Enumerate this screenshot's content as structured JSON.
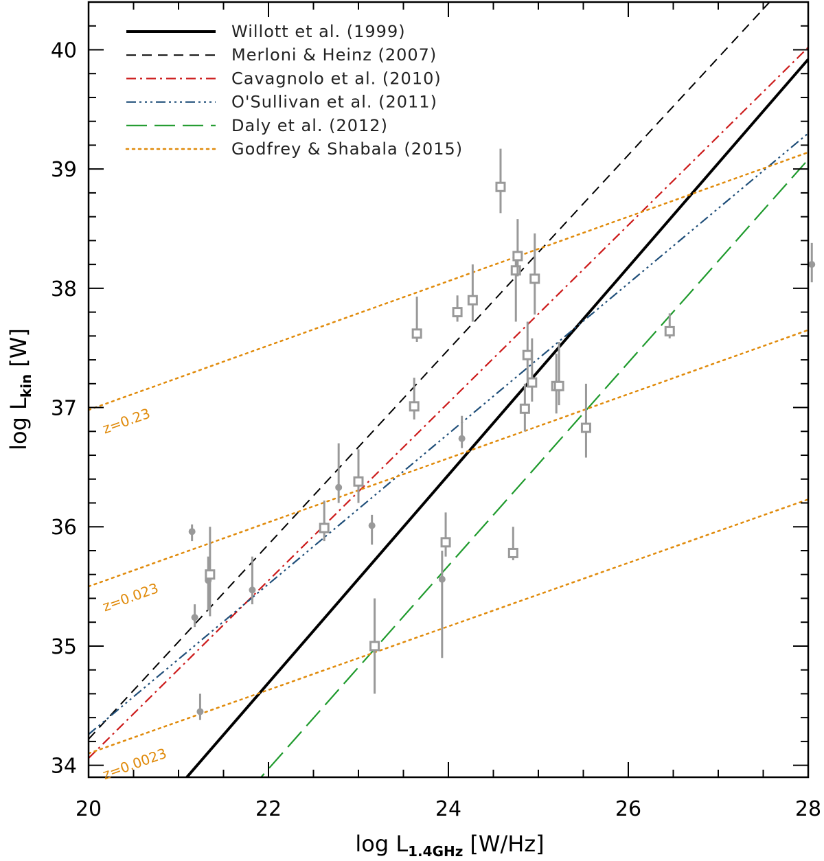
{
  "chart_data": {
    "type": "line",
    "xlabel": {
      "base": "log L",
      "sub": "1.4GHz",
      "unit": "[W/Hz]"
    },
    "ylabel": {
      "base": "log L",
      "sub": "kin",
      "unit": "[W]"
    },
    "xlim": [
      20,
      28
    ],
    "ylim": [
      33.9,
      40.4
    ],
    "x_ticks": [
      20,
      22,
      24,
      26,
      28
    ],
    "y_ticks": [
      34,
      35,
      36,
      37,
      38,
      39,
      40
    ],
    "x_minor_step": 0.5,
    "y_minor_step": 0.2,
    "grid": false,
    "legend_position": "top-left",
    "series": [
      {
        "name": "Willott et al. (1999)",
        "style": "solid",
        "color": "#000000",
        "width": 4,
        "x": [
          21.0,
          28.0
        ],
        "y": [
          33.82,
          39.92
        ]
      },
      {
        "name": "Merloni & Heinz (2007)",
        "style": "dashed",
        "color": "#000000",
        "width": 2,
        "x": [
          20.0,
          28.0
        ],
        "y": [
          34.22,
          40.75
        ]
      },
      {
        "name": "Cavagnolo et al. (2010)",
        "style": "dashdot",
        "color": "#cc1a1a",
        "width": 2.2,
        "x": [
          20.0,
          28.0
        ],
        "y": [
          34.06,
          40.02
        ]
      },
      {
        "name": "O'Sullivan et al. (2011)",
        "style": "dashdotdotdot",
        "color": "#1f4e79",
        "width": 2.2,
        "x": [
          20.0,
          28.0
        ],
        "y": [
          34.26,
          39.3
        ]
      },
      {
        "name": "Daly et al. (2012)",
        "style": "longdash",
        "color": "#1e9a2c",
        "width": 2.2,
        "x": [
          21.8,
          28.0
        ],
        "y": [
          33.8,
          39.08
        ]
      },
      {
        "name": "Godfrey & Shabala (2015)",
        "style": "dotted",
        "color": "#e08a0a",
        "width": 2.5,
        "x": [
          20.0,
          28.0
        ],
        "y": [
          36.98,
          39.14
        ]
      }
    ],
    "extra_lines": [
      {
        "x": [
          20.0,
          28.0
        ],
        "y": [
          35.5,
          37.65
        ],
        "label": "z=0.023"
      },
      {
        "x": [
          20.0,
          28.0
        ],
        "y": [
          34.1,
          36.23
        ],
        "label": "z=0.0023"
      }
    ],
    "annotations": [
      {
        "text": "z=0.23",
        "x": 20.18,
        "y": 36.78,
        "color": "#e08a0a"
      },
      {
        "text": "z=0.023",
        "x": 20.18,
        "y": 35.29,
        "color": "#e08a0a"
      },
      {
        "text": "z=0.0023",
        "x": 20.18,
        "y": 33.88,
        "color": "#e08a0a"
      }
    ],
    "data_points": [
      {
        "x": 21.15,
        "y": 35.96,
        "lo": 35.88,
        "hi": 36.02,
        "marker": "circle"
      },
      {
        "x": 21.18,
        "y": 35.24,
        "lo": 35.16,
        "hi": 35.35,
        "marker": "circle"
      },
      {
        "x": 21.24,
        "y": 34.45,
        "lo": 34.38,
        "hi": 34.6,
        "marker": "circle"
      },
      {
        "x": 21.33,
        "y": 35.55,
        "lo": 35.3,
        "hi": 35.75,
        "marker": "circle"
      },
      {
        "x": 21.35,
        "y": 35.6,
        "lo": 35.25,
        "hi": 36.0,
        "marker": "square"
      },
      {
        "x": 21.82,
        "y": 35.47,
        "lo": 35.35,
        "hi": 35.75,
        "marker": "circle"
      },
      {
        "x": 22.62,
        "y": 35.99,
        "lo": 35.88,
        "hi": 36.22,
        "marker": "square"
      },
      {
        "x": 22.78,
        "y": 36.33,
        "lo": 36.2,
        "hi": 36.7,
        "marker": "circle"
      },
      {
        "x": 23.0,
        "y": 36.38,
        "lo": 36.2,
        "hi": 36.65,
        "marker": "square"
      },
      {
        "x": 23.15,
        "y": 36.01,
        "lo": 35.85,
        "hi": 36.1,
        "marker": "circle"
      },
      {
        "x": 23.18,
        "y": 35.0,
        "lo": 34.6,
        "hi": 35.4,
        "marker": "square"
      },
      {
        "x": 23.62,
        "y": 37.01,
        "lo": 36.9,
        "hi": 37.25,
        "marker": "square"
      },
      {
        "x": 23.65,
        "y": 37.62,
        "lo": 37.55,
        "hi": 37.93,
        "marker": "square"
      },
      {
        "x": 23.93,
        "y": 35.56,
        "lo": 34.9,
        "hi": 35.8,
        "marker": "circle"
      },
      {
        "x": 23.97,
        "y": 35.87,
        "lo": 35.75,
        "hi": 36.12,
        "marker": "square"
      },
      {
        "x": 24.1,
        "y": 37.8,
        "lo": 37.72,
        "hi": 37.94,
        "marker": "square"
      },
      {
        "x": 24.15,
        "y": 36.74,
        "lo": 36.66,
        "hi": 36.93,
        "marker": "circle"
      },
      {
        "x": 24.27,
        "y": 37.9,
        "lo": 37.72,
        "hi": 38.2,
        "marker": "square"
      },
      {
        "x": 24.58,
        "y": 38.85,
        "lo": 38.63,
        "hi": 39.17,
        "marker": "square"
      },
      {
        "x": 24.72,
        "y": 35.78,
        "lo": 35.72,
        "hi": 36.0,
        "marker": "square"
      },
      {
        "x": 24.75,
        "y": 38.15,
        "lo": 37.72,
        "hi": 38.3,
        "marker": "square"
      },
      {
        "x": 24.77,
        "y": 38.27,
        "lo": 38.1,
        "hi": 38.58,
        "marker": "square"
      },
      {
        "x": 24.85,
        "y": 36.99,
        "lo": 36.8,
        "hi": 37.2,
        "marker": "square"
      },
      {
        "x": 24.88,
        "y": 37.44,
        "lo": 37.2,
        "hi": 37.72,
        "marker": "square"
      },
      {
        "x": 24.93,
        "y": 37.21,
        "lo": 37.05,
        "hi": 37.58,
        "marker": "square"
      },
      {
        "x": 24.96,
        "y": 38.08,
        "lo": 37.78,
        "hi": 38.46,
        "marker": "square"
      },
      {
        "x": 25.2,
        "y": 37.18,
        "lo": 36.95,
        "hi": 37.45,
        "marker": "square"
      },
      {
        "x": 25.23,
        "y": 37.18,
        "lo": 37.02,
        "hi": 37.55,
        "marker": "square"
      },
      {
        "x": 25.53,
        "y": 36.83,
        "lo": 36.58,
        "hi": 37.2,
        "marker": "square"
      },
      {
        "x": 26.46,
        "y": 37.64,
        "lo": 37.58,
        "hi": 37.79,
        "marker": "square"
      },
      {
        "x": 28.04,
        "y": 38.2,
        "lo": 38.05,
        "hi": 38.38,
        "marker": "circle"
      }
    ]
  }
}
